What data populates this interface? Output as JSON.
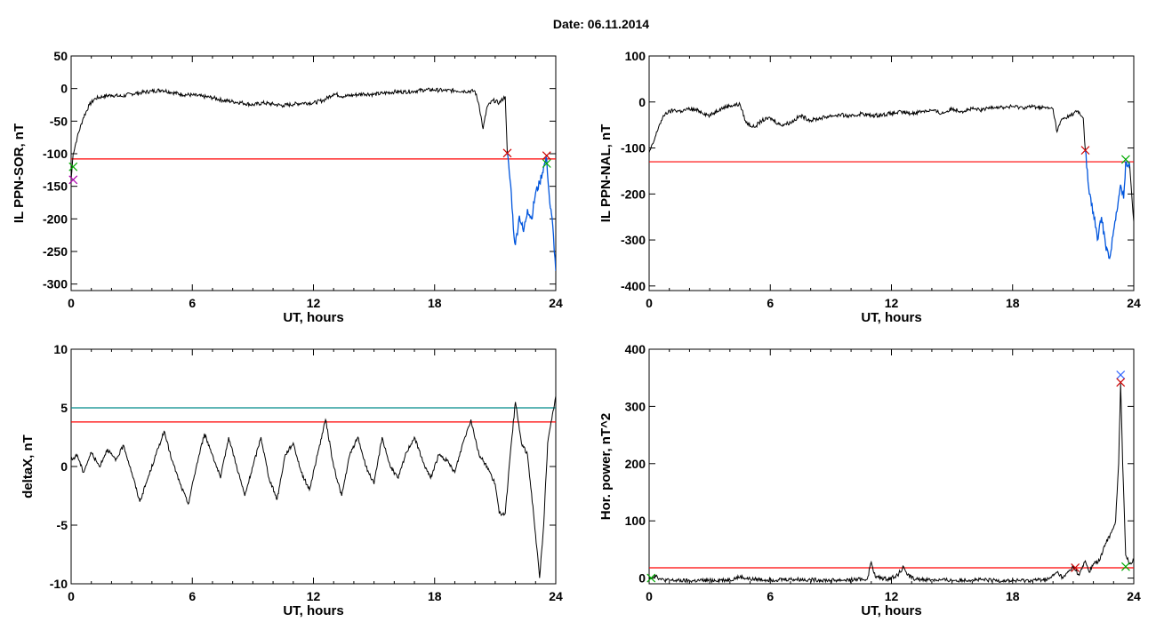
{
  "figure_title": "Date:  06.11.2014",
  "colors": {
    "axis": "#000000",
    "trace": "#000000",
    "threshold": "#ff0000",
    "threshold2": "#008b8b",
    "highlight": "#0055dd",
    "marker_red": "#cc0000",
    "marker_green": "#00aa00",
    "marker_blue": "#3366ff",
    "marker_purple": "#aa00aa"
  },
  "chart_data": [
    {
      "type": "line",
      "xlabel": "UT, hours",
      "ylabel": "IL PPN-SOR, nT",
      "xlim": [
        0,
        24
      ],
      "ylim": [
        -310,
        50
      ],
      "xticks": [
        "0",
        "6",
        "12",
        "18",
        "24"
      ],
      "yticks": [
        "50",
        "0",
        "-50",
        "-100",
        "-150",
        "-200",
        "-250",
        "-300"
      ],
      "threshold": -108,
      "series": [
        {
          "values": [
            [
              0,
              -140
            ],
            [
              0.1,
              -100
            ],
            [
              0.3,
              -75
            ],
            [
              0.6,
              -45
            ],
            [
              0.9,
              -25
            ],
            [
              1.2,
              -15
            ],
            [
              1.6,
              -12
            ],
            [
              2.0,
              -10
            ],
            [
              2.5,
              -12
            ],
            [
              3.0,
              -8
            ],
            [
              3.5,
              -6
            ],
            [
              4.0,
              -4
            ],
            [
              4.5,
              -2
            ],
            [
              5.0,
              -6
            ],
            [
              5.5,
              -9
            ],
            [
              6.0,
              -10
            ],
            [
              6.5,
              -12
            ],
            [
              7.0,
              -14
            ],
            [
              7.5,
              -18
            ],
            [
              8.0,
              -20
            ],
            [
              8.5,
              -22
            ],
            [
              9.0,
              -25
            ],
            [
              9.5,
              -22
            ],
            [
              10.0,
              -24
            ],
            [
              10.5,
              -26
            ],
            [
              11.0,
              -24
            ],
            [
              11.5,
              -22
            ],
            [
              12.0,
              -22
            ],
            [
              12.5,
              -18
            ],
            [
              13.0,
              -8
            ],
            [
              13.5,
              -12
            ],
            [
              14.0,
              -10
            ],
            [
              14.5,
              -8
            ],
            [
              15.0,
              -9
            ],
            [
              15.5,
              -7
            ],
            [
              16.0,
              -5
            ],
            [
              16.5,
              -5
            ],
            [
              17.0,
              -4
            ],
            [
              17.5,
              -2
            ],
            [
              18.0,
              -2
            ],
            [
              18.5,
              -3
            ],
            [
              19.0,
              -3
            ],
            [
              19.5,
              -4
            ],
            [
              20.0,
              -4
            ],
            [
              20.2,
              -25
            ],
            [
              20.4,
              -62
            ],
            [
              20.6,
              -28
            ],
            [
              20.9,
              -18
            ],
            [
              21.2,
              -22
            ],
            [
              21.5,
              -12
            ],
            [
              21.6,
              -99
            ]
          ]
        },
        {
          "values": [
            [
              21.6,
              -99
            ],
            [
              21.8,
              -160
            ],
            [
              21.9,
              -215
            ],
            [
              22.0,
              -240
            ],
            [
              22.2,
              -195
            ],
            [
              22.4,
              -220
            ],
            [
              22.6,
              -185
            ],
            [
              22.8,
              -200
            ],
            [
              23.0,
              -160
            ],
            [
              23.2,
              -145
            ],
            [
              23.4,
              -120
            ],
            [
              23.55,
              -108
            ],
            [
              23.7,
              -175
            ],
            [
              23.85,
              -210
            ],
            [
              24.0,
              -280
            ]
          ],
          "highlight": true
        }
      ],
      "markers": [
        {
          "x": 21.6,
          "y": -99,
          "color": "red"
        },
        {
          "x": 23.55,
          "y": -103,
          "color": "red"
        },
        {
          "x": 23.55,
          "y": -115,
          "color": "green"
        },
        {
          "x": 0.1,
          "y": -120,
          "color": "green"
        },
        {
          "x": 0.1,
          "y": -140,
          "color": "purple"
        }
      ]
    },
    {
      "type": "line",
      "xlabel": "UT, hours",
      "ylabel": "IL PPN-NAL, nT",
      "xlim": [
        0,
        24
      ],
      "ylim": [
        -410,
        100
      ],
      "xticks": [
        "0",
        "6",
        "12",
        "18",
        "24"
      ],
      "yticks": [
        "100",
        "0",
        "-100",
        "-200",
        "-300",
        "-400"
      ],
      "threshold": -130,
      "series": [
        {
          "values": [
            [
              0,
              -110
            ],
            [
              0.2,
              -90
            ],
            [
              0.5,
              -50
            ],
            [
              0.8,
              -25
            ],
            [
              1.2,
              -18
            ],
            [
              1.6,
              -20
            ],
            [
              2.0,
              -15
            ],
            [
              2.5,
              -20
            ],
            [
              3.0,
              -30
            ],
            [
              3.5,
              -15
            ],
            [
              4.0,
              -8
            ],
            [
              4.5,
              -5
            ],
            [
              4.8,
              -45
            ],
            [
              5.2,
              -55
            ],
            [
              5.6,
              -40
            ],
            [
              6.0,
              -35
            ],
            [
              6.5,
              -50
            ],
            [
              7.0,
              -45
            ],
            [
              7.5,
              -30
            ],
            [
              8.0,
              -40
            ],
            [
              8.5,
              -35
            ],
            [
              9.0,
              -30
            ],
            [
              9.5,
              -28
            ],
            [
              10.0,
              -32
            ],
            [
              10.5,
              -25
            ],
            [
              11.0,
              -30
            ],
            [
              11.5,
              -28
            ],
            [
              12.0,
              -25
            ],
            [
              12.5,
              -22
            ],
            [
              13.0,
              -25
            ],
            [
              13.5,
              -20
            ],
            [
              14.0,
              -18
            ],
            [
              14.5,
              -25
            ],
            [
              15.0,
              -15
            ],
            [
              15.5,
              -20
            ],
            [
              16.0,
              -15
            ],
            [
              16.5,
              -18
            ],
            [
              17.0,
              -10
            ],
            [
              17.5,
              -12
            ],
            [
              18.0,
              -10
            ],
            [
              18.5,
              -12
            ],
            [
              19.0,
              -10
            ],
            [
              19.5,
              -12
            ],
            [
              20.0,
              -15
            ],
            [
              20.2,
              -65
            ],
            [
              20.4,
              -40
            ],
            [
              20.8,
              -30
            ],
            [
              21.2,
              -20
            ],
            [
              21.5,
              -35
            ],
            [
              21.6,
              -105
            ]
          ]
        },
        {
          "values": [
            [
              21.6,
              -105
            ],
            [
              21.8,
              -200
            ],
            [
              22.0,
              -240
            ],
            [
              22.2,
              -300
            ],
            [
              22.4,
              -250
            ],
            [
              22.6,
              -310
            ],
            [
              22.8,
              -340
            ],
            [
              23.0,
              -280
            ],
            [
              23.2,
              -230
            ],
            [
              23.35,
              -180
            ],
            [
              23.5,
              -210
            ],
            [
              23.6,
              -130
            ],
            [
              23.8,
              -140
            ]
          ],
          "highlight": true
        },
        {
          "values": [
            [
              23.8,
              -140
            ],
            [
              24.0,
              -260
            ]
          ]
        }
      ],
      "markers": [
        {
          "x": 21.6,
          "y": -105,
          "color": "red"
        },
        {
          "x": 23.6,
          "y": -125,
          "color": "green"
        }
      ]
    },
    {
      "type": "line",
      "xlabel": "UT, hours",
      "ylabel": "deltaX, nT",
      "xlim": [
        0,
        24
      ],
      "ylim": [
        -10,
        10
      ],
      "xticks": [
        "0",
        "6",
        "12",
        "18",
        "24"
      ],
      "yticks": [
        "10",
        "5",
        "0",
        "-5",
        "-10"
      ],
      "threshold": 3.8,
      "threshold2": 5,
      "series": [
        {
          "values": [
            [
              0,
              0.5
            ],
            [
              0.3,
              1
            ],
            [
              0.6,
              -0.5
            ],
            [
              1.0,
              1.2
            ],
            [
              1.4,
              0
            ],
            [
              1.8,
              1.5
            ],
            [
              2.2,
              0.5
            ],
            [
              2.6,
              1.8
            ],
            [
              3.0,
              -0.5
            ],
            [
              3.4,
              -3
            ],
            [
              3.8,
              -1
            ],
            [
              4.2,
              1
            ],
            [
              4.6,
              3
            ],
            [
              5.0,
              0.5
            ],
            [
              5.4,
              -1.5
            ],
            [
              5.8,
              -3.2
            ],
            [
              6.2,
              0
            ],
            [
              6.6,
              2.8
            ],
            [
              7.0,
              1
            ],
            [
              7.4,
              -1
            ],
            [
              7.8,
              2.5
            ],
            [
              8.2,
              0
            ],
            [
              8.6,
              -2.5
            ],
            [
              9.0,
              0
            ],
            [
              9.4,
              2.5
            ],
            [
              9.8,
              -1
            ],
            [
              10.2,
              -2.8
            ],
            [
              10.6,
              1
            ],
            [
              11.0,
              2
            ],
            [
              11.4,
              -0.5
            ],
            [
              11.8,
              -2
            ],
            [
              12.2,
              1
            ],
            [
              12.6,
              4
            ],
            [
              13.0,
              0
            ],
            [
              13.4,
              -2.5
            ],
            [
              13.8,
              1
            ],
            [
              14.2,
              2.5
            ],
            [
              14.6,
              0
            ],
            [
              15.0,
              -1.5
            ],
            [
              15.4,
              2.5
            ],
            [
              15.8,
              0
            ],
            [
              16.2,
              -1
            ],
            [
              16.6,
              1.2
            ],
            [
              17.0,
              2.5
            ],
            [
              17.4,
              0.5
            ],
            [
              17.8,
              -1
            ],
            [
              18.2,
              1
            ],
            [
              18.6,
              0.5
            ],
            [
              19.0,
              -0.5
            ],
            [
              19.4,
              2
            ],
            [
              19.8,
              4
            ],
            [
              20.2,
              1
            ],
            [
              20.6,
              0
            ],
            [
              21.0,
              -1.5
            ],
            [
              21.2,
              -4
            ],
            [
              21.5,
              -4
            ],
            [
              21.8,
              2
            ],
            [
              22.0,
              5.5
            ],
            [
              22.3,
              2
            ],
            [
              22.6,
              1
            ],
            [
              22.9,
              -4
            ],
            [
              23.2,
              -9.5
            ],
            [
              23.4,
              -5
            ],
            [
              23.6,
              2
            ],
            [
              23.8,
              4
            ],
            [
              24.0,
              6
            ]
          ]
        }
      ],
      "markers": []
    },
    {
      "type": "line",
      "xlabel": "UT, hours",
      "ylabel": "Hor. power, nT^2",
      "xlim": [
        0,
        24
      ],
      "ylim": [
        -10,
        400
      ],
      "xticks": [
        "0",
        "6",
        "12",
        "18",
        "24"
      ],
      "yticks": [
        "400",
        "300",
        "200",
        "100",
        "0"
      ],
      "threshold": 18,
      "series": [
        {
          "values": [
            [
              0,
              0
            ],
            [
              0.3,
              5
            ],
            [
              0.6,
              -3
            ],
            [
              1,
              -4
            ],
            [
              2,
              -5
            ],
            [
              3,
              -4
            ],
            [
              4,
              -3
            ],
            [
              4.5,
              2
            ],
            [
              5,
              -2
            ],
            [
              6,
              -3
            ],
            [
              7,
              -2
            ],
            [
              8,
              -3
            ],
            [
              9,
              -4
            ],
            [
              10,
              -3
            ],
            [
              10.8,
              -2
            ],
            [
              11.0,
              28
            ],
            [
              11.2,
              2
            ],
            [
              11.8,
              -2
            ],
            [
              12.3,
              5
            ],
            [
              12.6,
              20
            ],
            [
              12.8,
              5
            ],
            [
              13.2,
              -2
            ],
            [
              14,
              -3
            ],
            [
              15,
              -4
            ],
            [
              16,
              -3
            ],
            [
              17,
              -4
            ],
            [
              18,
              -5
            ],
            [
              19,
              -4
            ],
            [
              19.8,
              -2
            ],
            [
              20.2,
              10
            ],
            [
              20.5,
              0
            ],
            [
              21.0,
              20
            ],
            [
              21.3,
              5
            ],
            [
              21.6,
              30
            ],
            [
              21.8,
              10
            ],
            [
              22.0,
              25
            ],
            [
              22.3,
              30
            ],
            [
              22.6,
              60
            ],
            [
              22.9,
              80
            ],
            [
              23.1,
              100
            ],
            [
              23.25,
              200
            ],
            [
              23.35,
              340
            ],
            [
              23.45,
              200
            ],
            [
              23.6,
              40
            ],
            [
              23.8,
              25
            ],
            [
              24.0,
              30
            ]
          ]
        }
      ],
      "markers": [
        {
          "x": 23.35,
          "y": 355,
          "color": "blue"
        },
        {
          "x": 23.35,
          "y": 342,
          "color": "red"
        },
        {
          "x": 21.1,
          "y": 18,
          "color": "red"
        },
        {
          "x": 23.6,
          "y": 20,
          "color": "green"
        },
        {
          "x": 0.1,
          "y": 0,
          "color": "green"
        }
      ]
    }
  ]
}
